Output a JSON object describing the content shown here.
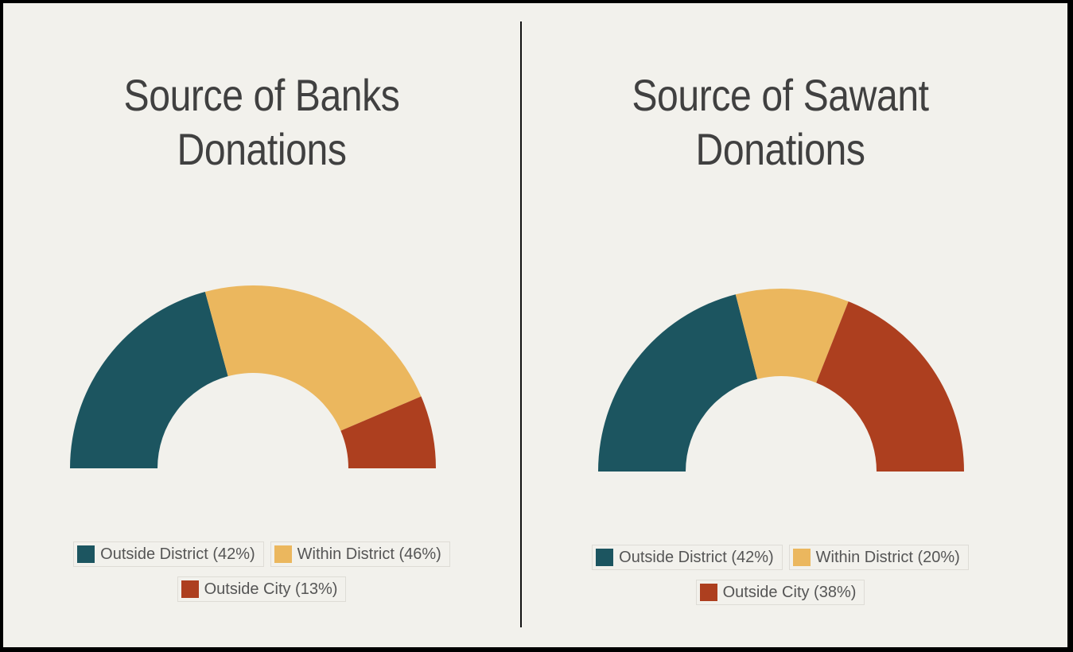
{
  "colors": {
    "outside_district": "#1c5560",
    "within_district": "#ebb75e",
    "outside_city": "#ad3f1f"
  },
  "chart_data": [
    {
      "type": "pie",
      "variant": "semi-donut",
      "title": [
        "Source of Banks",
        "Donations"
      ],
      "slices": [
        {
          "label": "Outside District (42%)",
          "value": 42,
          "color": "#1c5560"
        },
        {
          "label": "Within District (46%)",
          "value": 46,
          "color": "#ebb75e"
        },
        {
          "label": "Outside City (13%)",
          "value": 13,
          "color": "#ad3f1f"
        }
      ],
      "legend_position": "bottom"
    },
    {
      "type": "pie",
      "variant": "semi-donut",
      "title": [
        "Source of Sawant",
        "Donations"
      ],
      "slices": [
        {
          "label": "Outside District (42%)",
          "value": 42,
          "color": "#1c5560"
        },
        {
          "label": "Within District (20%)",
          "value": 20,
          "color": "#ebb75e"
        },
        {
          "label": "Outside City (38%)",
          "value": 38,
          "color": "#ad3f1f"
        }
      ],
      "legend_position": "bottom"
    }
  ]
}
